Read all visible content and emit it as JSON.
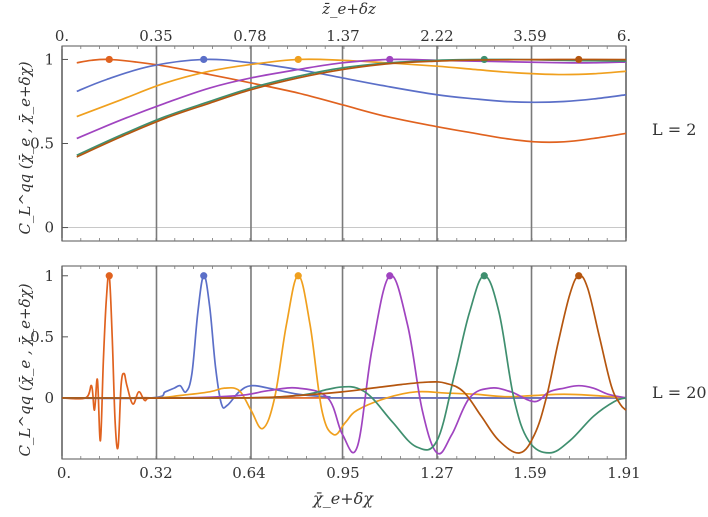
{
  "chart_data": [
    {
      "type": "line",
      "title": "",
      "panel_label": "L = 2",
      "ylabel": "C_L^qq (χ̄_e , χ̄_e+δχ)",
      "top_axis_label": "z̄_e+δz",
      "top_ticks": [
        "0.",
        "0.35",
        "0.78",
        "1.37",
        "2.22",
        "3.59",
        "6."
      ],
      "bottom_ticks": [
        "0.",
        "0.32",
        "0.64",
        "0.95",
        "1.27",
        "1.59",
        "1.91"
      ],
      "xlim": [
        0,
        1.91
      ],
      "ylim": [
        -0.08,
        1.08
      ],
      "y_ticks": [
        "0",
        "0.5",
        "1"
      ],
      "y_tick_values": [
        0,
        0.5,
        1
      ],
      "gridlines_x": [
        0,
        0.32,
        0.64,
        0.95,
        1.27,
        1.59,
        1.91
      ],
      "series": [
        {
          "name": "peak at 0.16",
          "color": "#e0621f",
          "peak": 0.16,
          "x": [
            0.05,
            0.1,
            0.16,
            0.25,
            0.35,
            0.5,
            0.64,
            0.8,
            0.95,
            1.1,
            1.27,
            1.4,
            1.5,
            1.6,
            1.7,
            1.8,
            1.91
          ],
          "values": [
            0.98,
            0.995,
            1.0,
            0.985,
            0.96,
            0.91,
            0.86,
            0.8,
            0.73,
            0.66,
            0.6,
            0.56,
            0.53,
            0.51,
            0.51,
            0.53,
            0.56
          ]
        },
        {
          "name": "peak at 0.48",
          "color": "#5b6fc8",
          "peak": 0.48,
          "x": [
            0.05,
            0.15,
            0.3,
            0.48,
            0.64,
            0.8,
            0.95,
            1.1,
            1.27,
            1.4,
            1.5,
            1.6,
            1.7,
            1.8,
            1.91
          ],
          "values": [
            0.81,
            0.88,
            0.96,
            1.0,
            0.98,
            0.94,
            0.89,
            0.84,
            0.79,
            0.765,
            0.75,
            0.745,
            0.75,
            0.765,
            0.79
          ]
        },
        {
          "name": "peak at 0.8",
          "color": "#f0a01e",
          "peak": 0.8,
          "x": [
            0.05,
            0.2,
            0.35,
            0.5,
            0.64,
            0.8,
            0.95,
            1.1,
            1.27,
            1.4,
            1.5,
            1.6,
            1.7,
            1.8,
            1.91
          ],
          "values": [
            0.66,
            0.76,
            0.86,
            0.93,
            0.97,
            1.0,
            0.995,
            0.98,
            0.96,
            0.94,
            0.925,
            0.915,
            0.91,
            0.915,
            0.93
          ]
        },
        {
          "name": "peak at 1.11",
          "color": "#a044c0",
          "peak": 1.11,
          "x": [
            0.05,
            0.2,
            0.35,
            0.5,
            0.64,
            0.8,
            0.95,
            1.11,
            1.27,
            1.4,
            1.55,
            1.7,
            1.8,
            1.91
          ],
          "values": [
            0.53,
            0.64,
            0.74,
            0.83,
            0.89,
            0.94,
            0.98,
            1.0,
            0.995,
            0.99,
            0.985,
            0.98,
            0.98,
            0.985
          ]
        },
        {
          "name": "peak at 1.43",
          "color": "#3f8f6f",
          "peak": 1.43,
          "x": [
            0.05,
            0.2,
            0.35,
            0.5,
            0.64,
            0.8,
            0.95,
            1.11,
            1.27,
            1.43,
            1.6,
            1.75,
            1.91
          ],
          "values": [
            0.43,
            0.55,
            0.66,
            0.75,
            0.83,
            0.9,
            0.95,
            0.98,
            0.995,
            1.0,
            0.998,
            0.993,
            0.99
          ]
        },
        {
          "name": "peak at 1.75",
          "color": "#b5560f",
          "peak": 1.75,
          "x": [
            0.05,
            0.2,
            0.35,
            0.5,
            0.64,
            0.8,
            0.95,
            1.11,
            1.27,
            1.43,
            1.6,
            1.75,
            1.91
          ],
          "values": [
            0.42,
            0.54,
            0.65,
            0.74,
            0.82,
            0.89,
            0.94,
            0.975,
            0.99,
            0.997,
            0.999,
            1.0,
            0.999
          ]
        }
      ]
    },
    {
      "type": "line",
      "title": "",
      "panel_label": "L = 20",
      "ylabel": "C_L^qq (χ̄_e , χ̄_e+δχ)",
      "xlabel": "χ̄_e+δχ",
      "bottom_ticks": [
        "0.",
        "0.32",
        "0.64",
        "0.95",
        "1.27",
        "1.59",
        "1.91"
      ],
      "xlim": [
        0,
        1.91
      ],
      "ylim": [
        -0.5,
        1.08
      ],
      "y_ticks": [
        "0",
        "0.5",
        "1"
      ],
      "y_tick_values": [
        0,
        0.5,
        1
      ],
      "gridlines_x": [
        0,
        0.32,
        0.64,
        0.95,
        1.27,
        1.59,
        1.91
      ],
      "series": [
        {
          "name": "peak at 0.16",
          "color": "#e0621f",
          "peak": 0.16,
          "x": [
            0.0,
            0.08,
            0.1,
            0.11,
            0.12,
            0.13,
            0.14,
            0.15,
            0.16,
            0.17,
            0.18,
            0.19,
            0.2,
            0.21,
            0.22,
            0.24,
            0.26,
            0.28,
            0.3,
            0.4,
            1.91
          ],
          "values": [
            0,
            0,
            0.1,
            -0.1,
            0.15,
            -0.35,
            0.3,
            0.8,
            1.0,
            0.5,
            -0.2,
            -0.4,
            0.1,
            0.2,
            0.1,
            -0.05,
            0.05,
            -0.02,
            0,
            0,
            0
          ]
        },
        {
          "name": "peak at 0.48",
          "color": "#5b6fc8",
          "peak": 0.48,
          "x": [
            0.0,
            0.3,
            0.35,
            0.38,
            0.4,
            0.42,
            0.44,
            0.46,
            0.48,
            0.5,
            0.52,
            0.54,
            0.56,
            0.6,
            0.64,
            0.7,
            0.8,
            0.9,
            1.0,
            1.91
          ],
          "values": [
            0,
            0,
            0.05,
            0.08,
            0.1,
            0.05,
            0.2,
            0.7,
            1.0,
            0.75,
            0.25,
            -0.05,
            -0.06,
            0.05,
            0.1,
            0.08,
            0.03,
            0.01,
            0,
            0
          ]
        },
        {
          "name": "peak at 0.8",
          "color": "#f0a01e",
          "peak": 0.8,
          "x": [
            0.0,
            0.3,
            0.4,
            0.5,
            0.55,
            0.6,
            0.64,
            0.68,
            0.72,
            0.76,
            0.8,
            0.84,
            0.88,
            0.92,
            0.96,
            1.0,
            1.1,
            1.2,
            1.3,
            1.4,
            1.5,
            1.6,
            1.7,
            1.8,
            1.91
          ],
          "values": [
            0,
            0,
            0.02,
            0.05,
            0.08,
            0.06,
            -0.1,
            -0.25,
            0.0,
            0.6,
            1.0,
            0.6,
            -0.1,
            -0.3,
            -0.2,
            -0.1,
            0.0,
            0.05,
            0.04,
            0.03,
            0.01,
            0.02,
            0.03,
            0.02,
            0.0
          ]
        },
        {
          "name": "peak at 1.11",
          "color": "#a044c0",
          "peak": 1.11,
          "x": [
            0.0,
            0.4,
            0.6,
            0.7,
            0.8,
            0.9,
            0.95,
            1.0,
            1.05,
            1.11,
            1.17,
            1.22,
            1.27,
            1.32,
            1.38,
            1.45,
            1.52,
            1.6,
            1.65,
            1.7,
            1.75,
            1.8,
            1.85,
            1.91
          ],
          "values": [
            0,
            0,
            0.02,
            0.06,
            0.08,
            0.0,
            -0.3,
            -0.4,
            0.4,
            1.0,
            0.6,
            -0.1,
            -0.45,
            -0.3,
            0.0,
            0.08,
            0.05,
            -0.03,
            0.05,
            0.08,
            0.1,
            0.08,
            0.03,
            0.0
          ]
        },
        {
          "name": "peak at 1.43",
          "color": "#3f8f6f",
          "peak": 1.43,
          "x": [
            0.0,
            0.6,
            0.8,
            0.9,
            0.95,
            1.0,
            1.05,
            1.12,
            1.2,
            1.27,
            1.33,
            1.38,
            1.43,
            1.48,
            1.53,
            1.58,
            1.65,
            1.72,
            1.8,
            1.87,
            1.91
          ],
          "values": [
            0,
            0,
            0.02,
            0.07,
            0.09,
            0.08,
            0.0,
            -0.2,
            -0.4,
            -0.35,
            0.2,
            0.7,
            1.0,
            0.7,
            0.0,
            -0.35,
            -0.45,
            -0.35,
            -0.15,
            -0.03,
            0.0
          ]
        },
        {
          "name": "peak at 1.75",
          "color": "#b5560f",
          "peak": 1.75,
          "x": [
            0.0,
            0.6,
            0.8,
            0.95,
            1.05,
            1.15,
            1.24,
            1.3,
            1.36,
            1.42,
            1.48,
            1.55,
            1.6,
            1.64,
            1.68,
            1.72,
            1.75,
            1.78,
            1.82,
            1.86,
            1.89,
            1.91
          ],
          "values": [
            0,
            0,
            0.02,
            0.05,
            0.08,
            0.11,
            0.13,
            0.12,
            0.05,
            -0.15,
            -0.35,
            -0.45,
            -0.3,
            0.0,
            0.45,
            0.85,
            1.0,
            0.9,
            0.5,
            0.1,
            -0.05,
            -0.1
          ]
        }
      ]
    }
  ]
}
